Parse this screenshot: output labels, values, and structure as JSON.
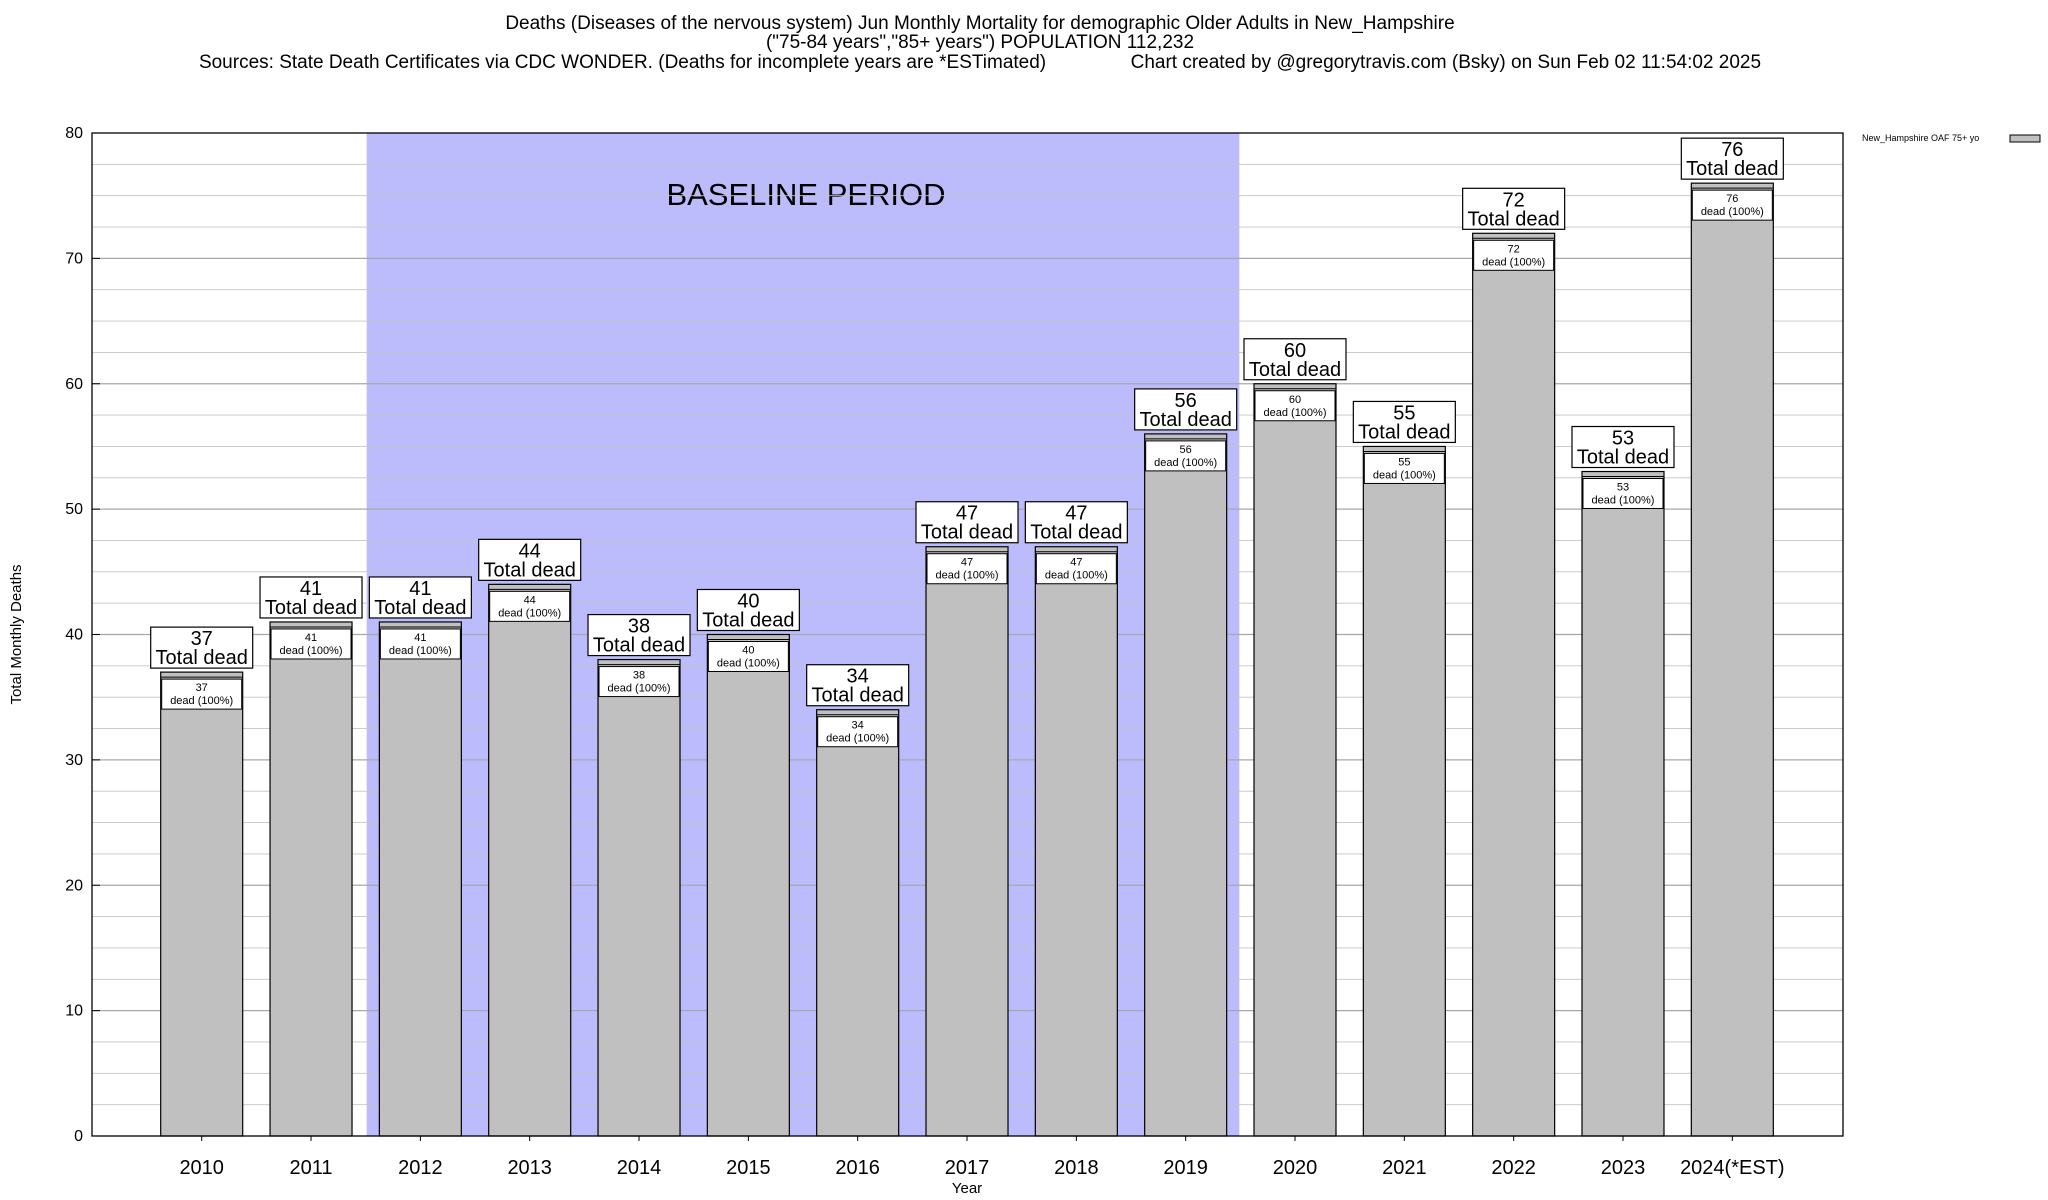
{
  "chart_data": {
    "type": "bar",
    "title": "Deaths (Diseases of the nervous system) Jun Monthly Mortality for demographic Older Adults in New_Hampshire",
    "subtitle": "(\"75-84 years\",\"85+ years\") POPULATION 112,232",
    "source": "Sources: State Death Certificates via CDC WONDER. (Deaths for incomplete years are *ESTimated)",
    "credit": "Chart created by @gregorytravis.com (Bsky) on Sun Feb 02 11:54:02 2025",
    "xlabel": "Year",
    "ylabel": "Total Monthly Deaths",
    "ylim": [
      0,
      80
    ],
    "yticks": [
      0,
      10,
      20,
      30,
      40,
      50,
      60,
      70,
      80
    ],
    "grid": true,
    "categories": [
      "2010",
      "2011",
      "2012",
      "2013",
      "2014",
      "2015",
      "2016",
      "2017",
      "2018",
      "2019",
      "2020",
      "2021",
      "2022",
      "2023",
      "2024(*EST)"
    ],
    "series": [
      {
        "name": "New_Hampshire OAF 75+ yo",
        "values": [
          37,
          41,
          41,
          44,
          38,
          40,
          34,
          47,
          47,
          56,
          60,
          55,
          72,
          53,
          76
        ],
        "color": "#c0c0c0"
      }
    ],
    "total_label": "Total dead",
    "inner_label": "dead (100%)",
    "baseline": {
      "label": "BASELINE PERIOD",
      "start_category": "2012",
      "end_category": "2019",
      "color": "#bcbcfc"
    },
    "legend_position": "top-right"
  }
}
